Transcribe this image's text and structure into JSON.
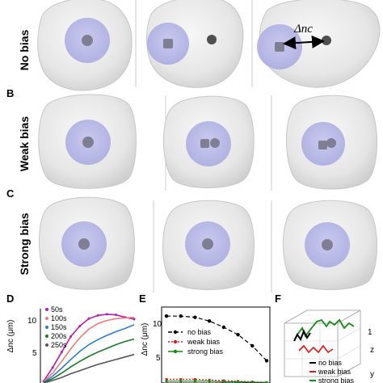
{
  "panel_letters": {
    "b": "B",
    "c": "C",
    "d": "D",
    "e": "E",
    "f": "F"
  },
  "row_labels": {
    "row1": "No bias",
    "row2": "Weak bias",
    "row3": "Strong bias"
  },
  "annotation": {
    "delta_nc": "Δnc"
  },
  "colors": {
    "cell": "#e9e9e9",
    "nucleus": "#b7b7e8",
    "center": "#7f7f94",
    "centrosome": "#4f4f4f"
  },
  "chart_data": [
    {
      "panel": "D",
      "type": "line",
      "ylabel": "Δnc (μm)",
      "ylim": [
        0,
        12
      ],
      "yticks": [
        "10",
        "5"
      ],
      "x": [
        0,
        1,
        2,
        3,
        4,
        5,
        6,
        7,
        8,
        9,
        10
      ],
      "series": [
        {
          "name": "50s",
          "color": "#b020b0",
          "values": [
            0.3,
            2.5,
            5.0,
            7.5,
            9.2,
            10.4,
            10.9,
            11.1,
            11.0,
            10.6,
            10.3
          ]
        },
        {
          "name": "100s",
          "color": "#f07a7a",
          "values": [
            0.2,
            1.6,
            3.5,
            5.5,
            7.3,
            8.7,
            9.6,
            10.1,
            10.4,
            10.5,
            10.6
          ]
        },
        {
          "name": "150s",
          "color": "#2f7cd8",
          "values": [
            0.1,
            1.1,
            2.4,
            3.8,
            5.1,
            6.2,
            7.0,
            7.7,
            8.3,
            8.8,
            9.4
          ]
        },
        {
          "name": "200s",
          "color": "#1a7a2a",
          "values": [
            0.1,
            0.7,
            1.6,
            2.6,
            3.5,
            4.3,
            5.0,
            5.6,
            6.2,
            6.7,
            7.1
          ]
        },
        {
          "name": "250s",
          "color": "#555555",
          "values": [
            0.0,
            0.4,
            0.9,
            1.5,
            2.0,
            2.5,
            3.0,
            3.4,
            3.8,
            4.2,
            4.6
          ]
        }
      ]
    },
    {
      "panel": "E",
      "type": "line",
      "ylabel": "Δnc (μm)",
      "ylim": [
        0,
        12
      ],
      "yticks": [
        "10",
        "5"
      ],
      "x": [
        0,
        1,
        2,
        3,
        4,
        5,
        6,
        7
      ],
      "series": [
        {
          "name": "no bias",
          "color": "#000000",
          "values": [
            10.8,
            10.8,
            10.6,
            10.0,
            9.0,
            7.8,
            6.0,
            3.6
          ]
        },
        {
          "name": "weak bias",
          "color": "#e01818",
          "values": [
            0.6,
            0.6,
            0.6,
            0.5,
            0.4,
            0.3,
            0.2,
            0.1
          ]
        },
        {
          "name": "strong bias",
          "color": "#138a13",
          "values": [
            0.3,
            0.3,
            0.3,
            0.3,
            0.2,
            0.2,
            0.1,
            0.1
          ]
        }
      ]
    },
    {
      "panel": "F",
      "type": "line",
      "zlabel": "z",
      "ylabel": "y",
      "ztick": "1",
      "series": [
        {
          "name": "no bias",
          "color": "#000000"
        },
        {
          "name": "weak bias",
          "color": "#e01818"
        },
        {
          "name": "strong bias",
          "color": "#138a13"
        }
      ]
    }
  ]
}
